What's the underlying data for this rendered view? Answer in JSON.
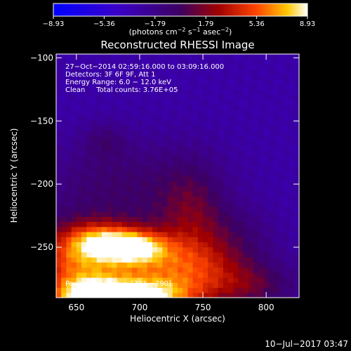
{
  "chart_data": {
    "type": "heatmap",
    "title": "Reconstructed RHESSI Image",
    "xlabel": "Heliocentric X (arcsec)",
    "ylabel": "Heliocentric Y (arcsec)",
    "xlim": [
      634,
      826
    ],
    "ylim": [
      -290,
      -97
    ],
    "x_ticks": [
      650,
      700,
      750,
      800
    ],
    "y_ticks": [
      -100,
      -150,
      -200,
      -250
    ],
    "x_tick_labels": [
      "650",
      "700",
      "750",
      "800"
    ],
    "y_tick_labels": [
      "−100",
      "−150",
      "−200",
      "−250"
    ],
    "colorbar": {
      "min": -8.93,
      "max": 8.93,
      "tick_values": [
        -8.93,
        -5.36,
        -1.79,
        1.79,
        5.36,
        8.93
      ],
      "tick_labels": [
        "−8.93",
        "−5.36",
        "−1.79",
        "1.79",
        "5.36",
        "8.93"
      ],
      "label_prefix": "(photons cm",
      "label_exp1": "−2",
      "label_mid": " s",
      "label_exp2": "−1",
      "label_mid2": " asec",
      "label_exp3": "−2",
      "label_suffix": ")"
    },
    "annotations": [
      "27−Oct−2014 02:59:16.000 to 03:09:16.000",
      "Detectors: 3F 6F 9F, Att 1",
      "Energy Range: 6.0 − 12.0 keV",
      "Clean     Total counts: 3.76E+05"
    ],
    "peak_label": "Position of Peak = [701,−290]",
    "peak": [
      701,
      -290
    ],
    "timestamp": "10−Jul−2017 03:47",
    "sources": [
      {
        "x": 701,
        "y": -290,
        "sx": 28,
        "sy": 10,
        "amp": 9.0
      },
      {
        "x": 660,
        "y": -290,
        "sx": 20,
        "sy": 10,
        "amp": 8.4
      },
      {
        "x": 697,
        "y": -250,
        "sx": 18,
        "sy": 9,
        "amp": 7.0
      },
      {
        "x": 670,
        "y": -245,
        "sx": 20,
        "sy": 10,
        "amp": 6.0
      },
      {
        "x": 690,
        "y": -268,
        "sx": 55,
        "sy": 22,
        "amp": 5.0
      },
      {
        "x": 648,
        "y": -262,
        "sx": 24,
        "sy": 22,
        "amp": 4.5
      },
      {
        "x": 745,
        "y": -268,
        "sx": 35,
        "sy": 18,
        "amp": 3.8
      },
      {
        "x": 742,
        "y": -225,
        "sx": 18,
        "sy": 28,
        "amp": 2.9
      },
      {
        "x": 790,
        "y": -282,
        "sx": 26,
        "sy": 12,
        "amp": 2.4
      },
      {
        "x": 672,
        "y": -165,
        "sx": 12,
        "sy": 10,
        "amp": 1.6
      },
      {
        "x": 715,
        "y": -205,
        "sx": 40,
        "sy": 30,
        "amp": 1.8
      },
      {
        "x": 660,
        "y": -200,
        "sx": 35,
        "sy": 25,
        "amp": 1.5
      },
      {
        "x": 780,
        "y": -235,
        "sx": 20,
        "sy": 15,
        "amp": 1.2
      }
    ],
    "background_level": -3.0
  }
}
